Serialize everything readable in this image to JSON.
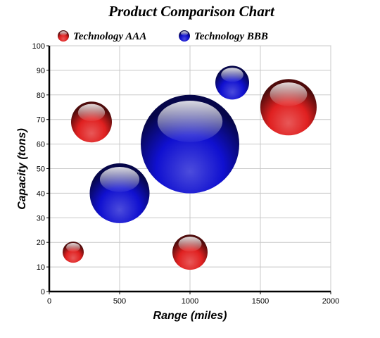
{
  "chart_data": {
    "type": "bubble",
    "title": "Product Comparison Chart",
    "xlabel": "Range (miles)",
    "ylabel": "Capacity (tons)",
    "xlim": [
      0,
      2000
    ],
    "ylim": [
      0,
      100
    ],
    "x_ticks": [
      "0",
      "500",
      "1000",
      "1500",
      "2000"
    ],
    "y_ticks": [
      "0",
      "10",
      "20",
      "30",
      "40",
      "50",
      "60",
      "70",
      "80",
      "90",
      "100"
    ],
    "grid": true,
    "legend_position": "top-left",
    "series": [
      {
        "name": "Technology AAA",
        "color": "#e02020",
        "points": [
          {
            "x": 300,
            "y": 69,
            "size": 58
          },
          {
            "x": 1700,
            "y": 75,
            "size": 80
          },
          {
            "x": 170,
            "y": 16,
            "size": 30
          },
          {
            "x": 1000,
            "y": 16,
            "size": 50
          }
        ]
      },
      {
        "name": "Technology BBB",
        "color": "#1010d0",
        "points": [
          {
            "x": 1300,
            "y": 85,
            "size": 48
          },
          {
            "x": 500,
            "y": 40,
            "size": 85
          },
          {
            "x": 1000,
            "y": 60,
            "size": 140
          }
        ]
      }
    ]
  }
}
